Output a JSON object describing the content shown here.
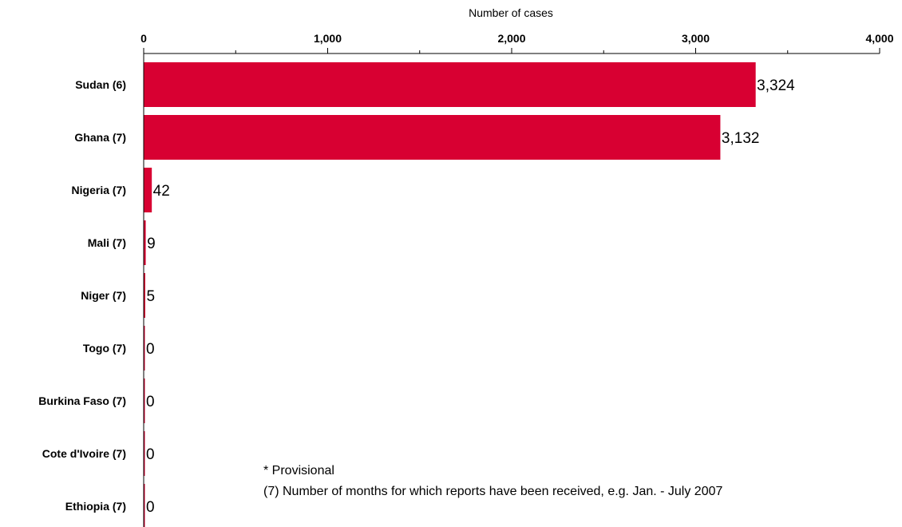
{
  "chart_data": {
    "type": "bar",
    "orientation": "horizontal",
    "xlabel": "Number of cases",
    "xlim": [
      0,
      4000
    ],
    "xticks": [
      0,
      1000,
      2000,
      3000,
      4000
    ],
    "xtick_labels": [
      "0",
      "1,000",
      "2,000",
      "3,000",
      "4,000"
    ],
    "x_axis_position": "top",
    "grid": false,
    "categories": [
      "Sudan (6)",
      "Ghana (7)",
      "Nigeria (7)",
      "Mali (7)",
      "Niger (7)",
      "Togo (7)",
      "Burkina Faso (7)",
      "Cote d'Ivoire (7)",
      "Ethiopia (7)"
    ],
    "values": [
      3324,
      3132,
      42,
      9,
      5,
      0,
      0,
      0,
      0
    ],
    "value_labels": [
      "3,324",
      "3,132",
      "42",
      "9",
      "5",
      "0",
      "0",
      "0",
      "0"
    ],
    "bar_color": "#d80032"
  },
  "notes": {
    "provisional": "* Provisional",
    "months": "(7) Number of months for which reports have been received, e.g. Jan. - July 2007"
  }
}
